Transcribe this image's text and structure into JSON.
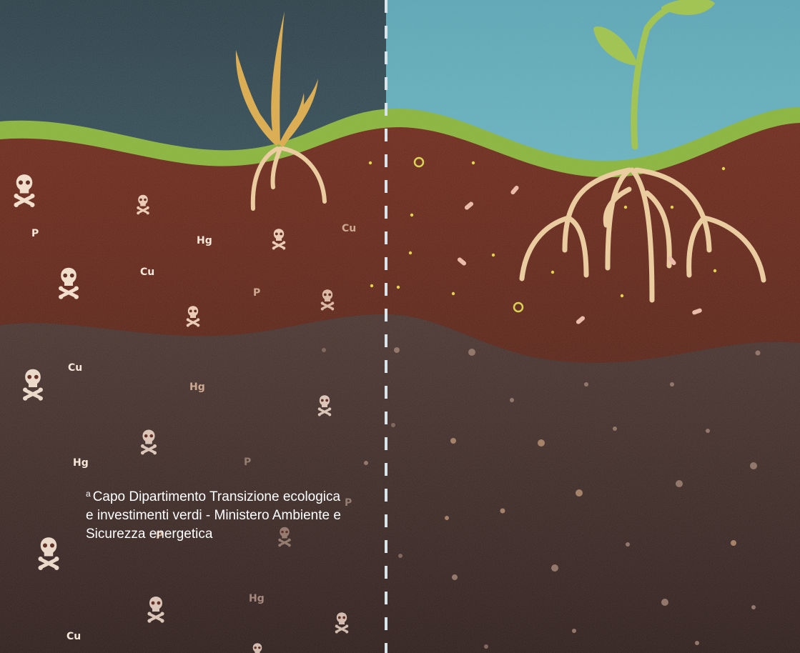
{
  "caption": {
    "marker": "a",
    "text": "Capo Dipartimento Transizione ecologica e investimenti verdi - Ministero Ambiente e Sicurezza energetica"
  },
  "elements": {
    "p": "P",
    "cu": "Cu",
    "hg": "Hg"
  },
  "colors": {
    "sky_polluted": "#2f4650",
    "sky_healthy": "#5aa9b8",
    "grass": "#8ab33a",
    "topsoil": "#6a2a1c",
    "subsoil": "#3e2a24",
    "root": "#e9c99a",
    "dried_plant": "#d9a94a",
    "sprout": "#9cc04a",
    "divider": "#d8e4ea"
  }
}
